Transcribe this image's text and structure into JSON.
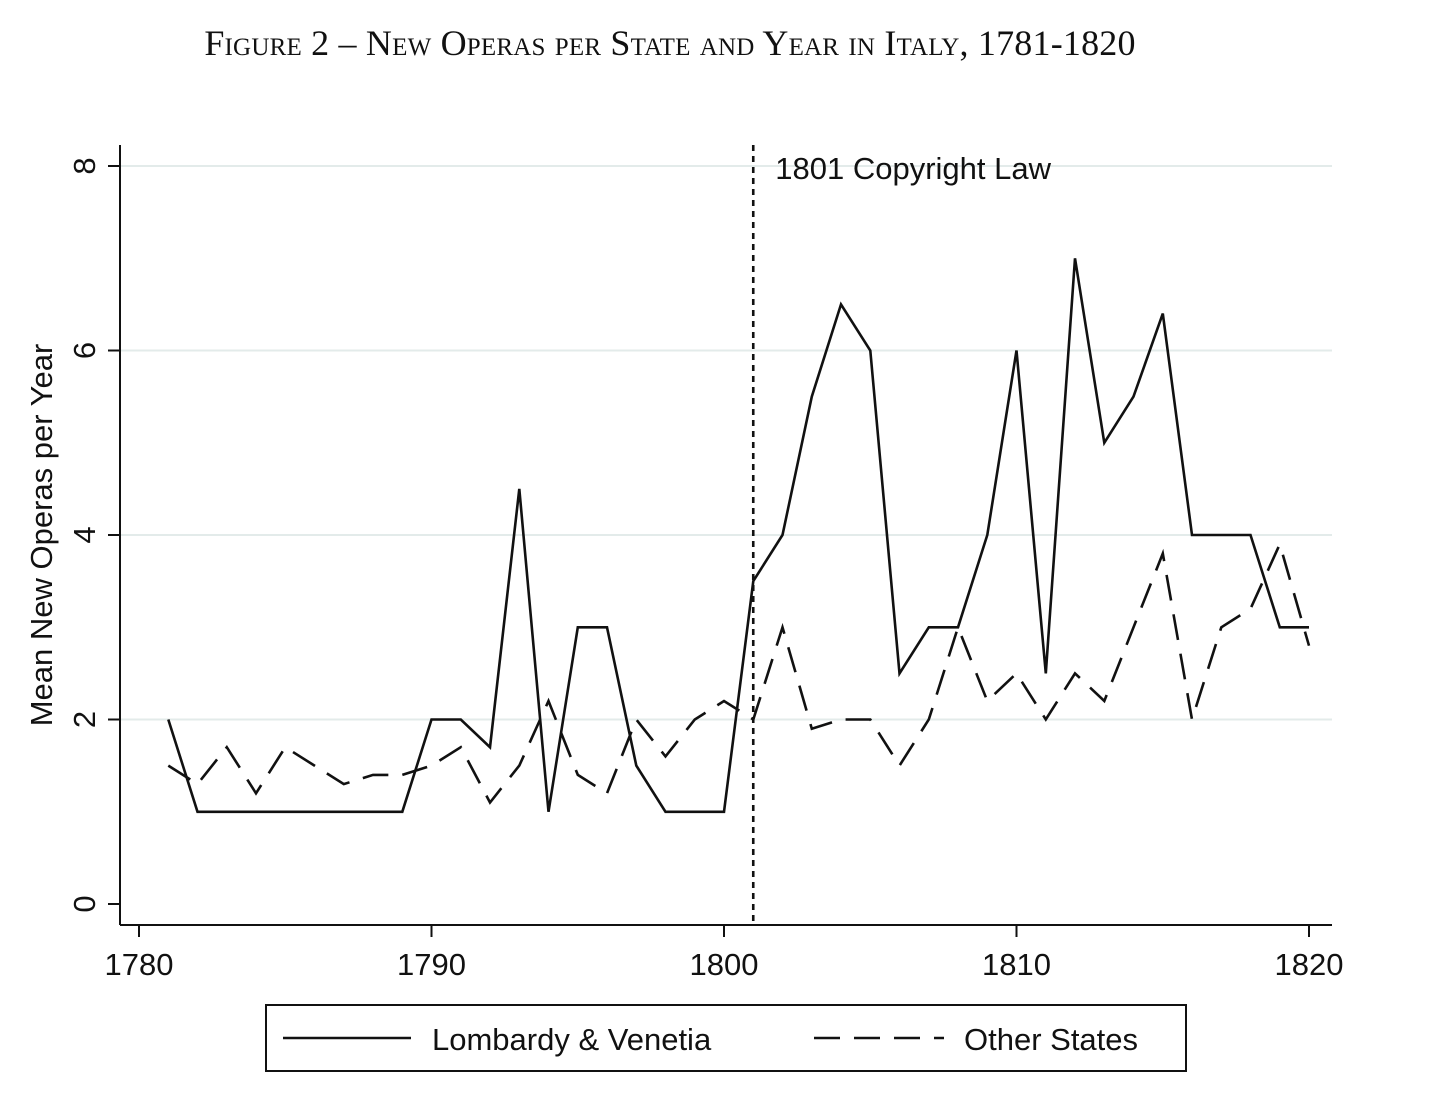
{
  "chart_data": {
    "type": "line",
    "title": "Figure 2 – New Operas per State and Year in Italy, 1781-1820",
    "xlabel": "",
    "ylabel": "Mean New Operas per Year",
    "xlim": [
      1780,
      1820
    ],
    "ylim": [
      0,
      8
    ],
    "xticks": [
      1780,
      1790,
      1800,
      1810,
      1820
    ],
    "yticks": [
      0,
      2,
      4,
      6,
      8
    ],
    "grid": "horizontal",
    "legend_position": "bottom",
    "annotation": {
      "x": 1801,
      "label": "1801 Copyright Law"
    },
    "x": [
      1781,
      1782,
      1783,
      1784,
      1785,
      1786,
      1787,
      1788,
      1789,
      1790,
      1791,
      1792,
      1793,
      1794,
      1795,
      1796,
      1797,
      1798,
      1799,
      1800,
      1801,
      1802,
      1803,
      1804,
      1805,
      1806,
      1807,
      1808,
      1809,
      1810,
      1811,
      1812,
      1813,
      1814,
      1815,
      1816,
      1817,
      1818,
      1819,
      1820
    ],
    "series": [
      {
        "name": "Lombardy & Venetia",
        "style": "solid",
        "values": [
          2,
          1,
          1,
          1,
          1,
          1,
          1,
          1,
          1,
          2,
          2,
          1.7,
          4.5,
          1,
          3,
          3,
          1.5,
          1,
          1,
          1,
          3.5,
          4,
          5.5,
          6.5,
          6,
          2.5,
          3,
          3,
          4,
          6,
          2.5,
          7,
          5,
          5.5,
          6.4,
          4,
          4,
          4,
          3,
          3
        ]
      },
      {
        "name": "Other States",
        "style": "dashed",
        "values": [
          1.5,
          1.3,
          1.7,
          1.2,
          1.7,
          1.5,
          1.3,
          1.4,
          1.4,
          1.5,
          1.7,
          1.1,
          1.5,
          2.2,
          1.4,
          1.2,
          2,
          1.6,
          2,
          2.2,
          2,
          3,
          1.9,
          2,
          2,
          1.5,
          2,
          3,
          2.2,
          2.5,
          2,
          2.5,
          2.2,
          3,
          3.8,
          2,
          3,
          3.2,
          3.9,
          2.8
        ]
      }
    ]
  }
}
